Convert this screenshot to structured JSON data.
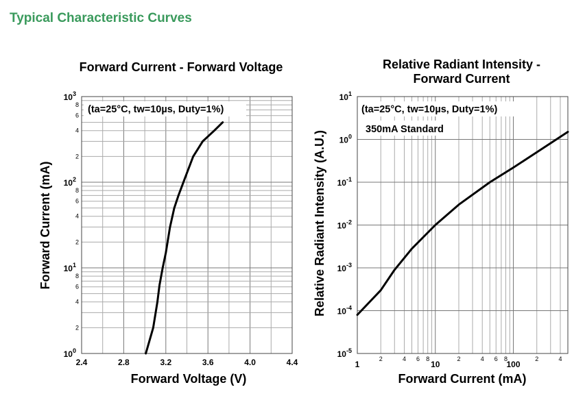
{
  "section_title": "Typical Characteristic Curves",
  "chart_data": [
    {
      "type": "line",
      "title": "Forward Current - Forward Voltage",
      "xlabel": "Forward Voltage (V)",
      "ylabel": "Forward Current (mA)",
      "xscale": "linear",
      "yscale": "log",
      "xlim": [
        2.4,
        4.4
      ],
      "ylim": [
        1,
        1000
      ],
      "grid": true,
      "annotation": "(ta=25°C, tw=10µs, Duty=1%)",
      "x_ticks": [
        "2.4",
        "2.8",
        "3.2",
        "3.6",
        "4.0",
        "4.4"
      ],
      "y_major_ticks": [
        {
          "base": "10",
          "exp": "0"
        },
        {
          "base": "10",
          "exp": "1"
        },
        {
          "base": "10",
          "exp": "2"
        },
        {
          "base": "10",
          "exp": "3"
        }
      ],
      "y_minor_tick_labels": [
        "2",
        "4",
        "6",
        "8"
      ],
      "series": [
        {
          "x": [
            3.01,
            3.08,
            3.12,
            3.14,
            3.17,
            3.2,
            3.24,
            3.28,
            3.32,
            3.38,
            3.46,
            3.55,
            3.66,
            3.74
          ],
          "y": [
            1,
            2,
            4,
            6.3,
            10,
            15,
            30,
            50,
            70,
            110,
            200,
            300,
            400,
            500
          ]
        }
      ]
    },
    {
      "type": "line",
      "title": [
        "Relative Radiant Intensity -",
        "Forward Current"
      ],
      "xlabel": "Forward Current (mA)",
      "ylabel": "Relative Radiant Intensity (A.U.)",
      "xscale": "log",
      "yscale": "log",
      "xlim": [
        1,
        500
      ],
      "ylim": [
        1e-05,
        10
      ],
      "grid": true,
      "annotation": "(ta=25°C, tw=10µs, Duty=1%)",
      "annotation2": "350mA Standard",
      "x_major_ticks": [
        "1",
        "10",
        "100"
      ],
      "x_minor_tick_labels": [
        "2",
        "4",
        "6",
        "8"
      ],
      "y_major_ticks": [
        {
          "base": "10",
          "exp": "-5"
        },
        {
          "base": "10",
          "exp": "-4"
        },
        {
          "base": "10",
          "exp": "-3"
        },
        {
          "base": "10",
          "exp": "-2"
        },
        {
          "base": "10",
          "exp": "-1"
        },
        {
          "base": "10",
          "exp": "0"
        },
        {
          "base": "10",
          "exp": "1"
        }
      ],
      "series": [
        {
          "x": [
            1,
            2,
            3,
            5,
            10,
            20,
            50,
            100,
            200,
            500
          ],
          "y": [
            8e-05,
            0.0003,
            0.0009,
            0.0028,
            0.01,
            0.03,
            0.1,
            0.22,
            0.5,
            1.5
          ]
        }
      ]
    }
  ]
}
